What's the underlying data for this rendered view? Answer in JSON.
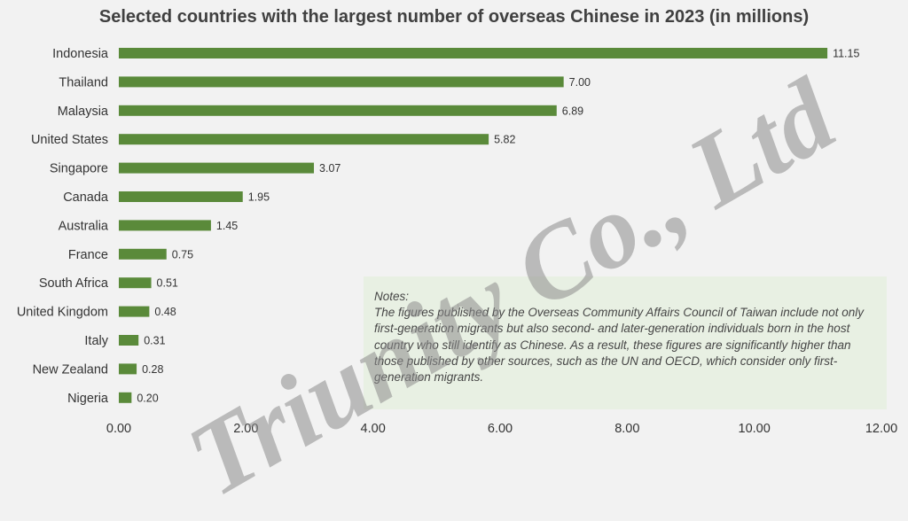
{
  "chart_data": {
    "type": "bar",
    "orientation": "horizontal",
    "title": "Selected countries with the largest number of overseas Chinese in 2023 (in millions)",
    "categories": [
      "Indonesia",
      "Thailand",
      "Malaysia",
      "United States",
      "Singapore",
      "Canada",
      "Australia",
      "France",
      "South Africa",
      "United Kingdom",
      "Italy",
      "New Zealand",
      "Nigeria"
    ],
    "values": [
      11.15,
      7.0,
      6.89,
      5.82,
      3.07,
      1.95,
      1.45,
      0.75,
      0.51,
      0.48,
      0.31,
      0.28,
      0.2
    ],
    "value_labels": [
      "11.15",
      "7.00",
      "6.89",
      "5.82",
      "3.07",
      "1.95",
      "1.45",
      "0.75",
      "0.51",
      "0.48",
      "0.31",
      "0.28",
      "0.20"
    ],
    "xlim": [
      0,
      12
    ],
    "xticks": [
      "0.00",
      "2.00",
      "4.00",
      "6.00",
      "8.00",
      "10.00",
      "12.00"
    ],
    "bar_color": "#5a8a3a",
    "grid": false,
    "legend": "none"
  },
  "notes": {
    "title": "Notes:",
    "text": "The figures published by the Overseas Community Affairs Council of Taiwan include not only first-generation migrants but also second- and later-generation individuals born in the host country who still identify as Chinese. As a result, these figures are significantly higher than those published by other sources, such as the UN and OECD, which consider only first-generation migrants."
  },
  "watermark": "Triunity Co., Ltd"
}
